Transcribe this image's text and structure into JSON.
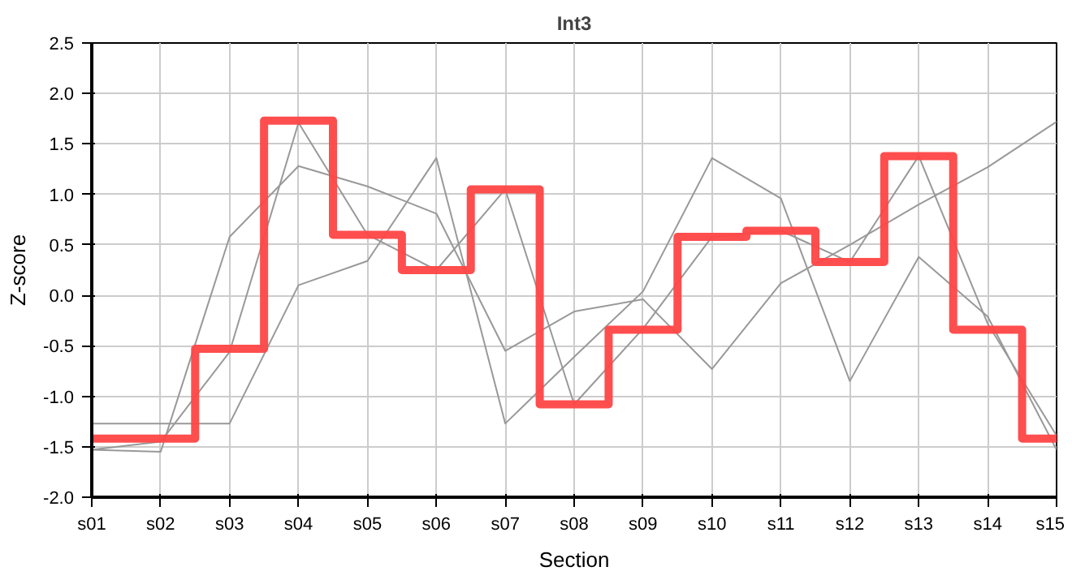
{
  "chart_data": {
    "type": "line",
    "title": "Int3",
    "xlabel": "Section",
    "ylabel": "Z-score",
    "categories": [
      "s01",
      "s02",
      "s03",
      "s04",
      "s05",
      "s06",
      "s07",
      "s08",
      "s09",
      "s10",
      "s11",
      "s12",
      "s13",
      "s14",
      "s15"
    ],
    "series": [
      {
        "color": "#999999",
        "values": [
          -1.53,
          -1.45,
          -0.56,
          1.71,
          0.6,
          0.25,
          1.05,
          -1.08,
          -0.33,
          0.58,
          0.64,
          0.33,
          1.38,
          -0.28,
          -1.39
        ]
      },
      {
        "color": "#999999",
        "values": [
          -1.53,
          -1.55,
          0.58,
          1.28,
          1.08,
          0.81,
          -0.55,
          -0.16,
          -0.04,
          -0.73,
          0.12,
          0.5,
          0.9,
          1.27,
          1.72
        ]
      },
      {
        "color": "#999999",
        "values": [
          -1.27,
          -1.27,
          -1.27,
          0.1,
          0.34,
          1.36,
          -1.27,
          -0.61,
          0.04,
          1.36,
          0.96,
          -0.85,
          0.38,
          -0.21,
          -1.53
        ]
      },
      {
        "type": "step",
        "color": "#ff4444",
        "values": [
          -1.42,
          -1.42,
          -0.53,
          1.73,
          0.6,
          0.25,
          1.05,
          -1.08,
          -0.34,
          0.58,
          0.64,
          0.33,
          1.38,
          -0.34,
          -1.42
        ]
      }
    ],
    "ylim": [
      -2.0,
      2.5
    ],
    "yticks": [
      {
        "value": -2,
        "label": "-2.0"
      },
      {
        "value": -1.5,
        "label": "-1.5"
      },
      {
        "value": -1,
        "label": "-1.0"
      },
      {
        "value": -0.5,
        "label": "-0.5"
      },
      {
        "value": 0,
        "label": "0.0"
      },
      {
        "value": 0.5,
        "label": "0.5"
      },
      {
        "value": 1,
        "label": "1.0"
      },
      {
        "value": 1.5,
        "label": "1.5"
      },
      {
        "value": 2,
        "label": "2.0"
      },
      {
        "value": 2.5,
        "label": "2.5"
      }
    ],
    "grid": true,
    "marker": "none",
    "line_style": "solid"
  }
}
